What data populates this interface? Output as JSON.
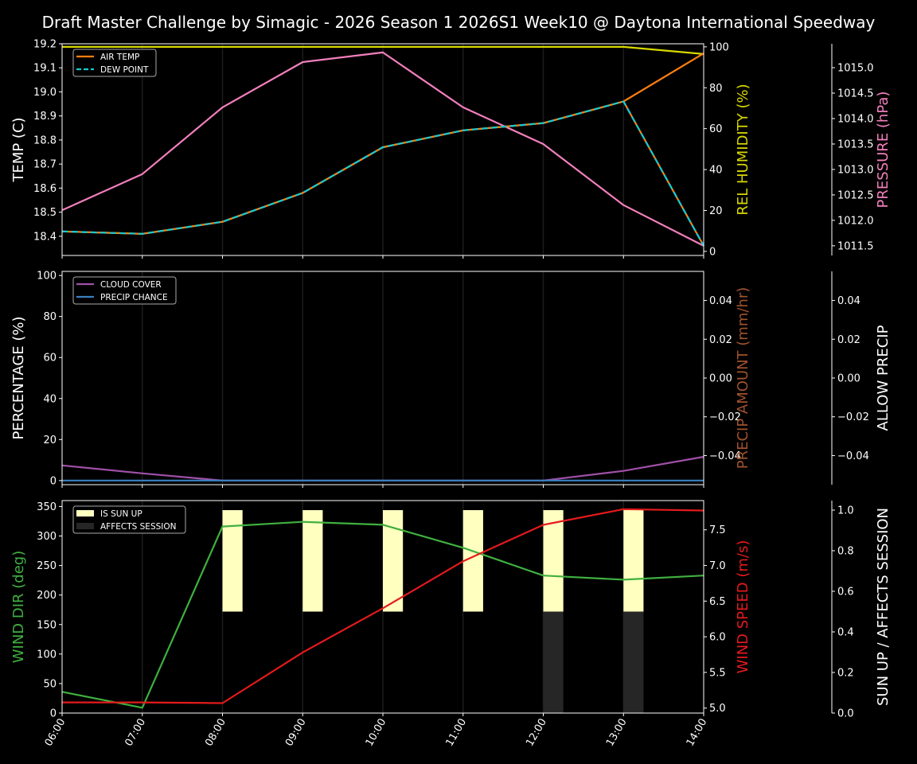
{
  "title": "Draft Master Challenge by Simagic - 2026 Season 1 2026S1 Week10 @ Daytona International Speedway",
  "x_tick_labels": [
    "06:00",
    "07:00",
    "08:00",
    "09:00",
    "10:00",
    "11:00",
    "12:00",
    "13:00",
    "14:00"
  ],
  "chart_data": [
    {
      "type": "line",
      "x": [
        "06:00",
        "07:00",
        "08:00",
        "09:00",
        "10:00",
        "11:00",
        "12:00",
        "13:00",
        "14:00"
      ],
      "axes": {
        "left": {
          "label": "TEMP (C)",
          "color": "#ffffff",
          "range": [
            18.32,
            19.2
          ],
          "ticks": [
            "18.4",
            "18.5",
            "18.6",
            "18.7",
            "18.8",
            "18.9",
            "19.0",
            "19.1",
            "19.2"
          ]
        },
        "right1": {
          "label": "REL HUMIDITY (%)",
          "color": "#d8d800",
          "range": [
            -2,
            101.5
          ],
          "ticks": [
            "0",
            "20",
            "40",
            "60",
            "80",
            "100"
          ]
        },
        "right2": {
          "label": "PRESSURE (hPa)",
          "color": "#f37fbd",
          "range": [
            1011.31,
            1015.47
          ],
          "ticks": [
            "1011.5",
            "1012.0",
            "1012.5",
            "1013.0",
            "1013.5",
            "1014.0",
            "1014.5",
            "1015.0"
          ]
        }
      },
      "legend": {
        "placement": "upper-left",
        "entries": [
          "AIR TEMP",
          "DEW POINT"
        ]
      },
      "series": [
        {
          "name": "REL HUMIDITY",
          "axis": "right1",
          "color": "#d8d800",
          "dash": false,
          "legend": false,
          "values": [
            100,
            100,
            100,
            100,
            100,
            100,
            100,
            100,
            96.5
          ]
        },
        {
          "name": "PRESSURE",
          "axis": "right2",
          "color": "#f37fbd",
          "dash": false,
          "legend": false,
          "values": [
            1012.2,
            1012.91,
            1014.22,
            1015.11,
            1015.3,
            1014.22,
            1013.5,
            1012.3,
            1011.5
          ]
        },
        {
          "name": "AIR TEMP",
          "axis": "left",
          "color": "#ff7f0e",
          "dash": false,
          "legend": true,
          "values": [
            18.42,
            18.41,
            18.46,
            18.58,
            18.77,
            18.84,
            18.87,
            18.96,
            19.16
          ]
        },
        {
          "name": "DEW POINT",
          "axis": "left",
          "color": "#17c8d0",
          "dash": true,
          "legend": true,
          "values": [
            18.42,
            18.41,
            18.46,
            18.58,
            18.77,
            18.84,
            18.87,
            18.96,
            18.36
          ]
        }
      ]
    },
    {
      "type": "line",
      "x": [
        "06:00",
        "07:00",
        "08:00",
        "09:00",
        "10:00",
        "11:00",
        "12:00",
        "13:00",
        "14:00"
      ],
      "axes": {
        "left": {
          "label": "PERCENTAGE (%)",
          "color": "#ffffff",
          "range": [
            -2,
            102
          ],
          "ticks": [
            "0",
            "20",
            "40",
            "60",
            "80",
            "100"
          ]
        },
        "right1": {
          "label": "PRECIP AMOUNT (mm/hr)",
          "color": "#a0522d",
          "range": [
            -0.055,
            0.055
          ],
          "ticks": [
            "−0.04",
            "−0.02",
            "0.00",
            "0.02",
            "0.04"
          ]
        },
        "right2": {
          "label": "ALLOW PRECIP",
          "color": "#ffffff",
          "range": [
            -0.055,
            0.055
          ],
          "ticks": [
            "−0.04",
            "−0.02",
            "0.00",
            "0.02",
            "0.04"
          ]
        }
      },
      "legend": {
        "placement": "upper-left",
        "entries": [
          "CLOUD COVER",
          "PRECIP CHANCE"
        ]
      },
      "series": [
        {
          "name": "CLOUD COVER",
          "axis": "left",
          "color": "#a050a8",
          "dash": false,
          "legend": true,
          "values": [
            7.4,
            3.5,
            0,
            0,
            0,
            0,
            0,
            4.7,
            11.6
          ]
        },
        {
          "name": "PRECIP CHANCE",
          "axis": "left",
          "color": "#3a80c0",
          "dash": false,
          "legend": true,
          "values": [
            0,
            0,
            0,
            0,
            0,
            0,
            0,
            0,
            0
          ]
        }
      ]
    },
    {
      "type": "line",
      "x": [
        "06:00",
        "07:00",
        "08:00",
        "09:00",
        "10:00",
        "11:00",
        "12:00",
        "13:00",
        "14:00"
      ],
      "axes": {
        "left": {
          "label": "WIND DIR (deg)",
          "color": "#3fb03f",
          "range": [
            0,
            360
          ],
          "ticks": [
            "0",
            "50",
            "100",
            "150",
            "200",
            "250",
            "300",
            "350"
          ]
        },
        "right1": {
          "label": "WIND SPEED (m/s)",
          "color": "#e41a1c",
          "range": [
            4.93,
            7.91
          ],
          "ticks": [
            "5.0",
            "5.5",
            "6.0",
            "6.5",
            "7.0",
            "7.5"
          ]
        },
        "right2": {
          "label": "SUN UP / AFFECTS SESSION",
          "color": "#ffffff",
          "range": [
            0,
            1.047
          ],
          "ticks": [
            "0.0",
            "0.2",
            "0.4",
            "0.6",
            "0.8",
            "1.0"
          ]
        }
      },
      "legend": {
        "placement": "upper-left",
        "entries": [
          "IS SUN UP",
          "AFFECTS SESSION"
        ]
      },
      "bars": [
        {
          "name": "IS SUN UP",
          "axis": "right2",
          "color": "#ffffc0",
          "base": 0.5,
          "top": 1.0,
          "values": [
            0,
            0,
            1,
            1,
            1,
            1,
            1,
            1,
            0
          ]
        },
        {
          "name": "AFFECTS SESSION",
          "axis": "right2",
          "color": "#262626",
          "base": 0.0,
          "top": 0.5,
          "values": [
            0,
            0,
            0,
            0,
            0,
            0,
            1,
            1,
            0
          ]
        }
      ],
      "series": [
        {
          "name": "WIND DIR",
          "axis": "left",
          "color": "#3fb03f",
          "dash": false,
          "legend": false,
          "values": [
            36,
            9,
            316,
            324,
            319,
            280,
            233,
            226,
            233
          ]
        },
        {
          "name": "WIND SPEED",
          "axis": "right1",
          "color": "#e41a1c",
          "dash": false,
          "legend": false,
          "values": [
            5.08,
            5.08,
            5.07,
            5.78,
            6.4,
            7.06,
            7.57,
            7.79,
            7.77
          ]
        }
      ]
    }
  ]
}
